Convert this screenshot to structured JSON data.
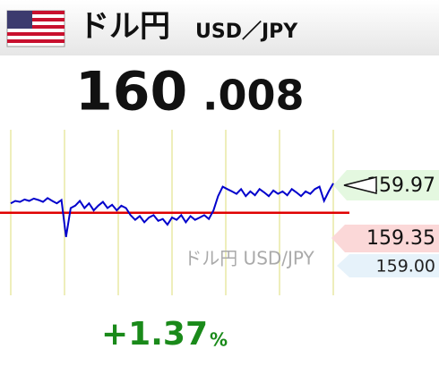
{
  "header": {
    "title": "ドル円",
    "pair": "USD／JPY"
  },
  "price": {
    "integer": "160",
    "decimal": ".008"
  },
  "chart": {
    "type": "line",
    "color": "#0000cc",
    "reference_color": "#e00000",
    "reference_line": 159.35,
    "ylim": [
      157.61,
      161.1
    ],
    "values": [
      159.55,
      159.6,
      159.58,
      159.63,
      159.6,
      159.65,
      159.62,
      159.58,
      159.66,
      159.6,
      159.55,
      159.62,
      158.84,
      159.45,
      159.5,
      159.6,
      159.45,
      159.55,
      159.4,
      159.5,
      159.58,
      159.45,
      159.52,
      159.4,
      159.5,
      159.45,
      159.3,
      159.2,
      159.28,
      159.15,
      159.25,
      159.3,
      159.18,
      159.22,
      159.1,
      159.25,
      159.2,
      159.3,
      159.15,
      159.28,
      159.2,
      159.25,
      159.3,
      159.22,
      159.4,
      159.7,
      159.9,
      159.85,
      159.8,
      159.75,
      159.85,
      159.7,
      159.8,
      159.72,
      159.85,
      159.78,
      159.7,
      159.82,
      159.75,
      159.8,
      159.72,
      159.85,
      159.78,
      159.7,
      159.8,
      159.75,
      159.85,
      159.9,
      159.6,
      159.8,
      159.97
    ],
    "watermark": "ドル円 USD/JPY",
    "tags": [
      {
        "value": 159.97,
        "label": "159.97"
      },
      {
        "value": 159.35,
        "label": "159.35"
      },
      {
        "value": 159.0,
        "label": "159.00"
      }
    ]
  },
  "change": {
    "value": "+1.37",
    "unit": "%"
  }
}
